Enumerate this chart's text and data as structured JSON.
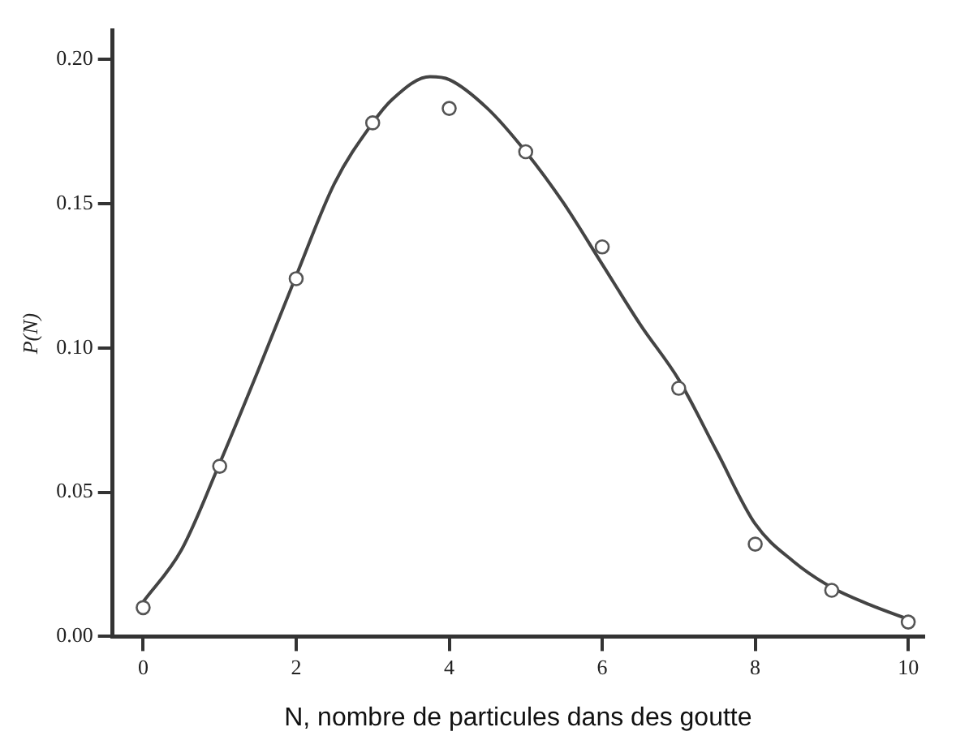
{
  "chart_data": {
    "type": "scatter",
    "xlabel": "N, nombre de particules dans des goutte",
    "ylabel": "P(N)",
    "xlim": [
      -0.4,
      10.2
    ],
    "ylim": [
      0,
      0.21
    ],
    "xticks": [
      0,
      2,
      4,
      6,
      8,
      10
    ],
    "yticks": [
      {
        "value": 0,
        "label": "0.00"
      },
      {
        "value": 0.05,
        "label": "0.05"
      },
      {
        "value": 0.1,
        "label": "0.10"
      },
      {
        "value": 0.15,
        "label": "0.15"
      },
      {
        "value": 0.2,
        "label": "0.20"
      }
    ],
    "marker": "circle",
    "series": [
      {
        "color": "#555555",
        "x": [
          0,
          1,
          2,
          3,
          4,
          5,
          6,
          7,
          8,
          9,
          10
        ],
        "values": [
          0.01,
          0.059,
          0.124,
          0.178,
          0.183,
          0.168,
          0.135,
          0.086,
          0.032,
          0.016,
          0.005
        ]
      },
      {
        "type": "line",
        "color": "#444444",
        "marker": "none",
        "x": [
          0,
          0.5,
          1,
          1.5,
          2,
          2.5,
          3,
          3.25,
          3.75,
          4,
          4.5,
          5,
          5.5,
          6,
          6.5,
          7,
          7.5,
          8,
          8.5,
          9,
          9.5,
          10
        ],
        "values": [
          0.012,
          0.03,
          0.06,
          0.092,
          0.125,
          0.157,
          0.178,
          0.186,
          0.194,
          0.193,
          0.183,
          0.168,
          0.15,
          0.129,
          0.108,
          0.089,
          0.064,
          0.039,
          0.026,
          0.017,
          0.011,
          0.006
        ]
      }
    ]
  }
}
